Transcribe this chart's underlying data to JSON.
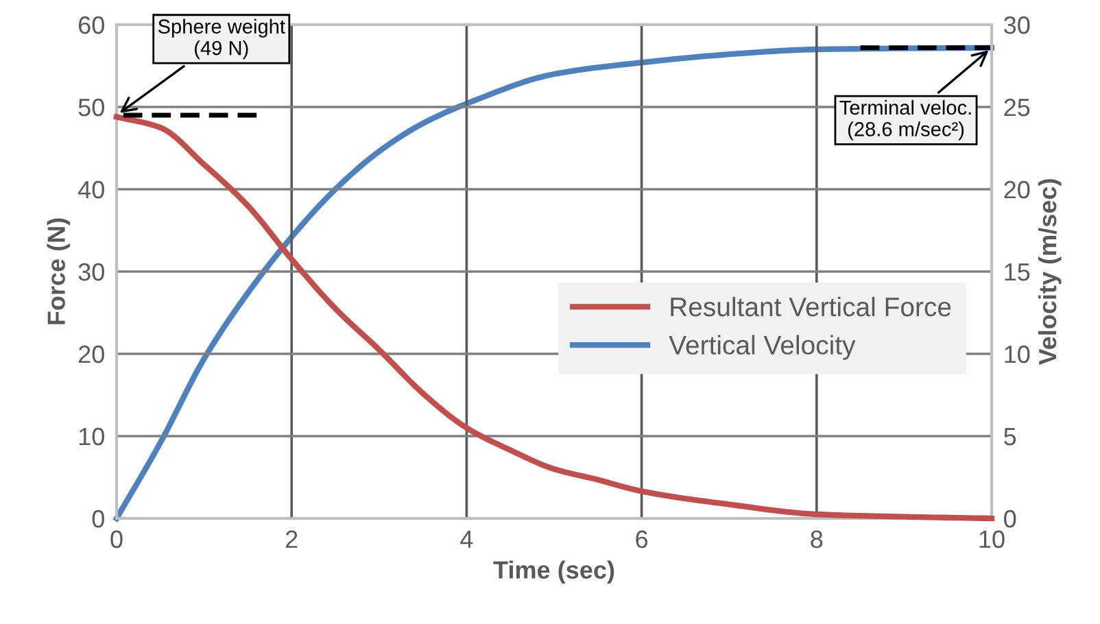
{
  "chart_data": {
    "type": "line",
    "xlabel": "Time (sec)",
    "ylabel": "Force (N)",
    "y2label": "Velocity (m/sec)",
    "xlim": [
      0,
      10
    ],
    "xticks": [
      0,
      2,
      4,
      6,
      8,
      10
    ],
    "ylim": [
      0,
      60
    ],
    "yticks": [
      0,
      10,
      20,
      30,
      40,
      50,
      60
    ],
    "y2lim": [
      0,
      30
    ],
    "y2ticks": [
      0,
      5,
      10,
      15,
      20,
      25,
      30
    ],
    "grid": true,
    "legend": "right",
    "marker": "none",
    "series": [
      {
        "name": "Resultant Vertical Force",
        "color": "#c0504d",
        "x": [
          0,
          0.5,
          1,
          1.5,
          2,
          2.5,
          3,
          3.5,
          4,
          4.5,
          5,
          5.5,
          6,
          7,
          8,
          9,
          10
        ],
        "values": [
          48.8,
          47.5,
          43,
          38,
          31.5,
          25.5,
          20.5,
          15.2,
          11,
          8.3,
          6,
          4.7,
          3.3,
          1.7,
          0.5,
          0.2,
          0
        ]
      },
      {
        "name": "Vertical Velocity",
        "color": "#4f81bd",
        "axis": "y2",
        "x": [
          0,
          0.5,
          1,
          1.5,
          2,
          2.5,
          3,
          3.5,
          4,
          5,
          6,
          7,
          8,
          10
        ],
        "values": [
          0,
          4.6,
          9.7,
          13.7,
          17.1,
          20,
          22.3,
          24,
          25.2,
          27,
          27.7,
          28.2,
          28.5,
          28.6
        ]
      },
      {
        "color": "#000000",
        "line_style": "dashed",
        "x": [
          1.6,
          0
        ],
        "values": [
          49,
          49
        ]
      },
      {
        "color": "#000000",
        "line_style": "dashed",
        "axis": "y2",
        "x": [
          8.5,
          10
        ],
        "values": [
          28.6,
          28.6
        ]
      }
    ],
    "annotations": [
      {
        "text": "Sphere weight\n(49 N)",
        "x": 0,
        "y": 49
      },
      {
        "text": "Terminal veloc.\n(28.6 m/sec²)",
        "x": 10,
        "y": 57.2
      }
    ]
  }
}
